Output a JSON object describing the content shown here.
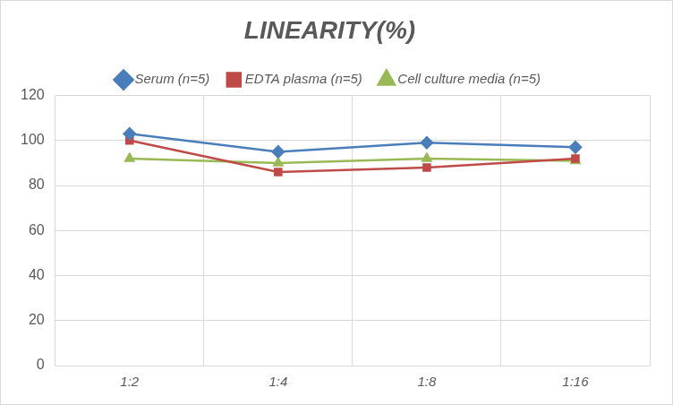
{
  "chart_data": {
    "type": "line",
    "title": "LINEARITY(%)",
    "categories": [
      "1:2",
      "1:4",
      "1:8",
      "1:16"
    ],
    "series": [
      {
        "name": "Serum (n=5)",
        "color": "#4a7ebb",
        "marker": "diamond",
        "values": [
          103,
          95,
          99,
          97
        ]
      },
      {
        "name": "EDTA plasma (n=5)",
        "color": "#be4b48",
        "marker": "square",
        "values": [
          100,
          86,
          88,
          92
        ]
      },
      {
        "name": "Cell culture media (n=5)",
        "color": "#98b954",
        "marker": "triangle",
        "values": [
          92,
          90,
          92,
          91
        ]
      }
    ],
    "ylim": [
      0,
      120
    ],
    "yticks": [
      0,
      20,
      40,
      60,
      80,
      100,
      120
    ],
    "grid": true,
    "legend": "top"
  }
}
